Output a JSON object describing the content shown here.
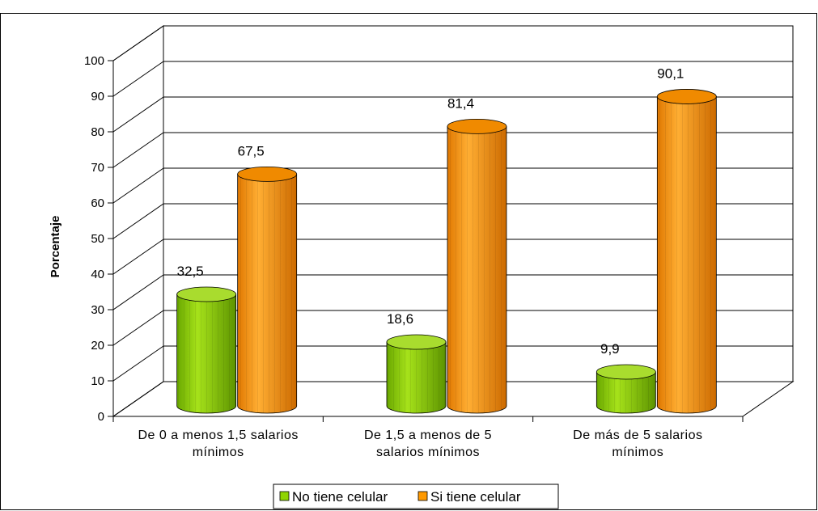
{
  "chart_data": {
    "type": "bar",
    "title": "",
    "xlabel": "",
    "ylabel": "Porcentaje",
    "ylim": [
      0,
      100
    ],
    "yticks": [
      "0",
      "10",
      "20",
      "30",
      "40",
      "50",
      "60",
      "70",
      "80",
      "90",
      "100"
    ],
    "categories": [
      [
        "De 0 a menos 1,5 salarios",
        "mínimos"
      ],
      [
        "De 1,5 a menos de 5",
        "salarios mínimos"
      ],
      [
        "De más de 5 salarios",
        "mínimos"
      ]
    ],
    "series": [
      {
        "name": "No tiene celular",
        "values": [
          32.5,
          18.6,
          9.9
        ],
        "labels": [
          "32,5",
          "18,6",
          "9,9"
        ],
        "color": "#8fd400"
      },
      {
        "name": "Si tiene celular",
        "values": [
          67.5,
          81.4,
          90.1
        ],
        "labels": [
          "67,5",
          "81,4",
          "90,1"
        ],
        "color": "#ff9900"
      }
    ],
    "grid": true,
    "legend": "bottom",
    "style": "3d-cylinder"
  }
}
